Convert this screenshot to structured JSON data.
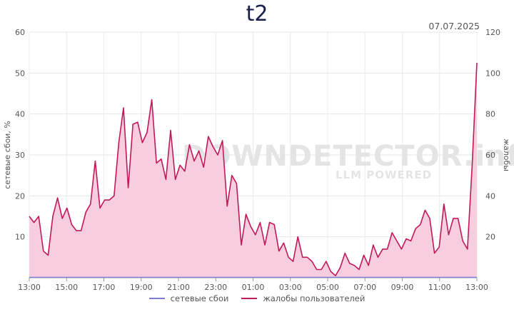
{
  "chart_data": {
    "type": "area",
    "title": "t2",
    "date": "07.07.2025",
    "watermark": "DOWNDETECTOR.info",
    "watermark_sub": "LLM POWERED",
    "y_left_label": "сетевые сбои, %",
    "y_right_label": "жалобы",
    "y_left_range": [
      0,
      60
    ],
    "y_right_range": [
      0,
      120
    ],
    "y_left_ticks": [
      10,
      20,
      30,
      40,
      50,
      60
    ],
    "y_right_ticks": [
      20,
      40,
      60,
      80,
      100,
      120
    ],
    "x_tick_labels": [
      "13:00",
      "15:00",
      "17:00",
      "19:00",
      "21:00",
      "23:00",
      "01:00",
      "03:00",
      "05:00",
      "07:00",
      "09:00",
      "11:00",
      "13:00"
    ],
    "x_range_hours": [
      0,
      24
    ],
    "grid": true,
    "legend_position": "bottom",
    "series": [
      {
        "name": "сетевые сбои",
        "axis": "left",
        "color": "#7b7fd4",
        "values": [
          0,
          0
        ]
      },
      {
        "name": "жалобы пользователей",
        "axis": "right",
        "color": "#c2185b",
        "fill": "#f6cedd",
        "values": [
          30,
          27,
          30,
          13,
          11,
          30,
          39,
          29,
          34,
          26,
          23,
          23,
          32,
          36,
          57,
          34,
          38,
          38,
          40,
          66,
          83,
          44,
          75,
          76,
          66,
          71,
          87,
          56,
          58,
          48,
          72,
          48,
          55,
          52,
          65,
          57,
          62,
          54,
          69,
          64,
          60,
          67,
          35,
          50,
          46,
          16,
          31,
          25,
          21,
          27,
          16,
          27,
          26,
          13,
          17,
          10,
          8,
          20,
          10,
          10,
          8,
          4,
          4,
          8,
          3,
          1,
          5,
          12,
          7,
          6,
          4,
          11,
          6,
          16,
          10,
          14,
          14,
          22,
          18,
          14,
          19,
          18,
          24,
          26,
          33,
          29,
          12,
          15,
          36,
          21,
          29,
          29,
          18,
          14,
          55,
          105
        ]
      }
    ]
  }
}
